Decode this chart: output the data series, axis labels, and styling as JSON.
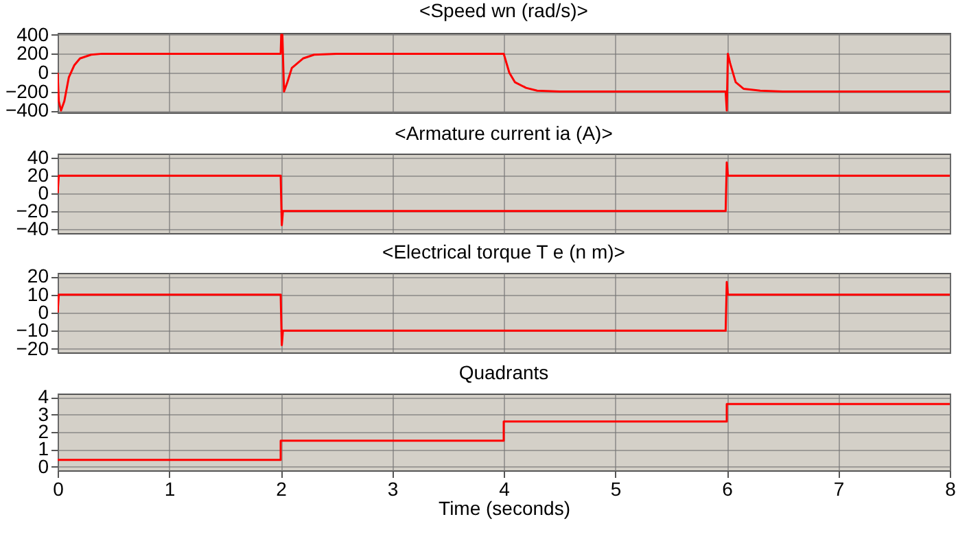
{
  "chart_data": [
    {
      "type": "line",
      "title": "<Speed wn (rad/s)>",
      "x": [
        0,
        0.01,
        0.03,
        0.06,
        0.1,
        0.15,
        0.2,
        0.3,
        0.4,
        2.0,
        2.005,
        2.015,
        2.03,
        2.06,
        2.1,
        2.2,
        2.3,
        2.5,
        4.0,
        4.05,
        4.1,
        4.2,
        4.3,
        4.5,
        5.99,
        6.0,
        6.01,
        6.03,
        6.08,
        6.15,
        6.3,
        6.5,
        8
      ],
      "series": [
        {
          "color": "#ff0000",
          "values": [
            0,
            -300,
            -400,
            -300,
            -50,
            80,
            150,
            190,
            200,
            200,
            400,
            400,
            -200,
            -100,
            50,
            150,
            190,
            200,
            200,
            0,
            -100,
            -160,
            -190,
            -200,
            -200,
            -400,
            200,
            100,
            -100,
            -170,
            -190,
            -200,
            -200
          ]
        }
      ],
      "xlim": [
        0,
        8
      ],
      "xticks": [
        0,
        1,
        2,
        3,
        4,
        5,
        6,
        7,
        8
      ],
      "ylim": [
        -420,
        420
      ],
      "yticks": [
        -400,
        -200,
        0,
        200,
        400
      ],
      "grid": true,
      "tick_labels": "y"
    },
    {
      "type": "line",
      "title": "<Armature current ia (A)>",
      "x": [
        0,
        0.01,
        2.0,
        2.01,
        2.02,
        2.04,
        5.99,
        6.0,
        6.01,
        6.03,
        8
      ],
      "series": [
        {
          "color": "#ff0000",
          "values": [
            0,
            20,
            20,
            -36,
            -20,
            -20,
            -20,
            35,
            20,
            20,
            20
          ]
        }
      ],
      "xlim": [
        0,
        8
      ],
      "xticks": [
        0,
        1,
        2,
        3,
        4,
        5,
        6,
        7,
        8
      ],
      "ylim": [
        -45,
        45
      ],
      "yticks": [
        -40,
        -20,
        0,
        20,
        40
      ],
      "grid": true,
      "tick_labels": "y"
    },
    {
      "type": "line",
      "title": "<Electrical torque T e (n m)>",
      "x": [
        0,
        0.01,
        2.0,
        2.01,
        2.02,
        2.04,
        5.99,
        6.0,
        6.01,
        6.03,
        8
      ],
      "series": [
        {
          "color": "#ff0000",
          "values": [
            0,
            10,
            10,
            -18,
            -10,
            -10,
            -10,
            17,
            10,
            10,
            10
          ]
        }
      ],
      "xlim": [
        0,
        8
      ],
      "xticks": [
        0,
        1,
        2,
        3,
        4,
        5,
        6,
        7,
        8
      ],
      "ylim": [
        -22,
        22
      ],
      "yticks": [
        -20,
        -10,
        0,
        10,
        20
      ],
      "grid": true,
      "tick_labels": "y"
    },
    {
      "type": "step",
      "title": "Quadrants",
      "xlabel": "Time (seconds)",
      "x": [
        0,
        2,
        4,
        6,
        8
      ],
      "series": [
        {
          "color": "#ff0000",
          "values": [
            0.4,
            1.5,
            2.6,
            3.6,
            3.6
          ]
        }
      ],
      "xlim": [
        0,
        8
      ],
      "xticks": [
        0,
        1,
        2,
        3,
        4,
        5,
        6,
        7,
        8
      ],
      "ylim": [
        -0.2,
        4.2
      ],
      "yticks": [
        0,
        1,
        2,
        3,
        4
      ],
      "grid": true
    }
  ]
}
